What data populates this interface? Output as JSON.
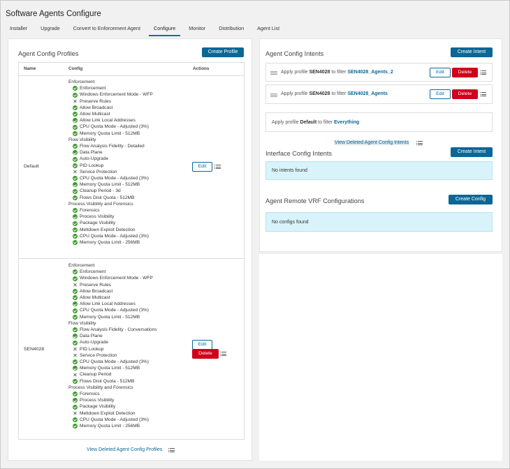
{
  "title": "Software Agents Configure",
  "tabs": [
    "Installer",
    "Upgrade",
    "Convert to Enforcement Agent",
    "Configure",
    "Monitor",
    "Distribution",
    "Agent List"
  ],
  "profiles": {
    "heading": "Agent Config Profiles",
    "create_label": "Create Profile",
    "columns": {
      "name": "Name",
      "config": "Config",
      "actions": "Actions"
    },
    "rows": [
      {
        "name": "Default",
        "edit": "Edit",
        "delete": "",
        "config": [
          {
            "section": "Enforcement",
            "items": [
              [
                "ok",
                "Enforcement"
              ],
              [
                "ok",
                "Windows Enforcement Mode - WFP"
              ],
              [
                "no",
                "Preserve Rules"
              ],
              [
                "ok",
                "Allow Broadcast"
              ],
              [
                "ok",
                "Allow Multicast"
              ],
              [
                "ok",
                "Allow Link Local Addresses"
              ],
              [
                "ok",
                "CPU Quota Mode - Adjusted (3%)"
              ],
              [
                "ok",
                "Memory Quota Limit - 512MB"
              ]
            ]
          },
          {
            "section": "Flow Visibility",
            "items": [
              [
                "ok",
                "Flow Analysis Fidelity - Detailed"
              ],
              [
                "ok",
                "Data Plane"
              ],
              [
                "ok",
                "Auto-Upgrade"
              ],
              [
                "ok",
                "PID Lookup"
              ],
              [
                "no",
                "Service Protection"
              ],
              [
                "ok",
                "CPU Quota Mode - Adjusted (3%)"
              ],
              [
                "ok",
                "Memory Quota Limit - 512MB"
              ],
              [
                "ok",
                "Cleanup Period - 3d"
              ],
              [
                "ok",
                "Flows Disk Quota - 512MB"
              ]
            ]
          },
          {
            "section": "Process Visibility and Forensics",
            "items": [
              [
                "ok",
                "Forensics"
              ],
              [
                "ok",
                "Process Visibility"
              ],
              [
                "ok",
                "Package Visibility"
              ],
              [
                "ok",
                "Meltdown Exploit Detection"
              ],
              [
                "ok",
                "CPU Quota Mode - Adjusted (3%)"
              ],
              [
                "ok",
                "Memory Quota Limit - 256MB"
              ]
            ]
          }
        ]
      },
      {
        "name": "SEN4028",
        "edit": "Edit",
        "delete": "Delete",
        "config": [
          {
            "section": "Enforcement",
            "items": [
              [
                "ok",
                "Enforcement"
              ],
              [
                "ok",
                "Windows Enforcement Mode - WFP"
              ],
              [
                "no",
                "Preserve Rules"
              ],
              [
                "ok",
                "Allow Broadcast"
              ],
              [
                "ok",
                "Allow Multicast"
              ],
              [
                "ok",
                "Allow Link Local Addresses"
              ],
              [
                "ok",
                "CPU Quota Mode - Adjusted (3%)"
              ],
              [
                "ok",
                "Memory Quota Limit - 512MB"
              ]
            ]
          },
          {
            "section": "Flow Visibility",
            "items": [
              [
                "ok",
                "Flow Analysis Fidelity - Conversations"
              ],
              [
                "ok",
                "Data Plane"
              ],
              [
                "ok",
                "Auto-Upgrade"
              ],
              [
                "no",
                "PID Lookup"
              ],
              [
                "no",
                "Service Protection"
              ],
              [
                "ok",
                "CPU Quota Mode - Adjusted (3%)"
              ],
              [
                "ok",
                "Memory Quota Limit - 512MB"
              ],
              [
                "no",
                "Cleanup Period"
              ],
              [
                "ok",
                "Flows Disk Quota - 512MB"
              ]
            ]
          },
          {
            "section": "Process Visibility and Forensics",
            "items": [
              [
                "ok",
                "Forensics"
              ],
              [
                "ok",
                "Process Visibility"
              ],
              [
                "ok",
                "Package Visibility"
              ],
              [
                "no",
                "Meltdown Exploit Detection"
              ],
              [
                "ok",
                "CPU Quota Mode - Adjusted (3%)"
              ],
              [
                "ok",
                "Memory Quota Limit - 256MB"
              ]
            ]
          }
        ]
      }
    ],
    "view_deleted": "View Deleted Agent Config Profiles"
  },
  "intents": {
    "heading": "Agent Config Intents",
    "create_label": "Create Intent",
    "items": [
      {
        "prefix": "Apply profile ",
        "profile": "SEN4028",
        "mid": " to filter ",
        "filter": "SEN4028_Agents_2",
        "edit": "Edit",
        "delete": "Delete"
      },
      {
        "prefix": "Apply profile ",
        "profile": "SEN4028",
        "mid": " to filter ",
        "filter": "SEN4028_Agents",
        "edit": "Edit",
        "delete": "Delete"
      }
    ],
    "default": {
      "prefix": "Apply profile ",
      "profile": "Default",
      "mid": " to filter ",
      "filter": "Everything"
    },
    "view_deleted": "View Deleted Agent Config Intents"
  },
  "interface": {
    "heading": "Interface Config Intents",
    "create_label": "Create Intent",
    "empty": "No intents found"
  },
  "vrf": {
    "heading": "Agent Remote VRF Configurations",
    "create_label": "Create Config",
    "empty": "No configs found"
  },
  "colors": {
    "primary": "#0b6795",
    "danger": "#d0021b",
    "success": "#3b9a2b",
    "info_bg": "#d9f3fb"
  }
}
